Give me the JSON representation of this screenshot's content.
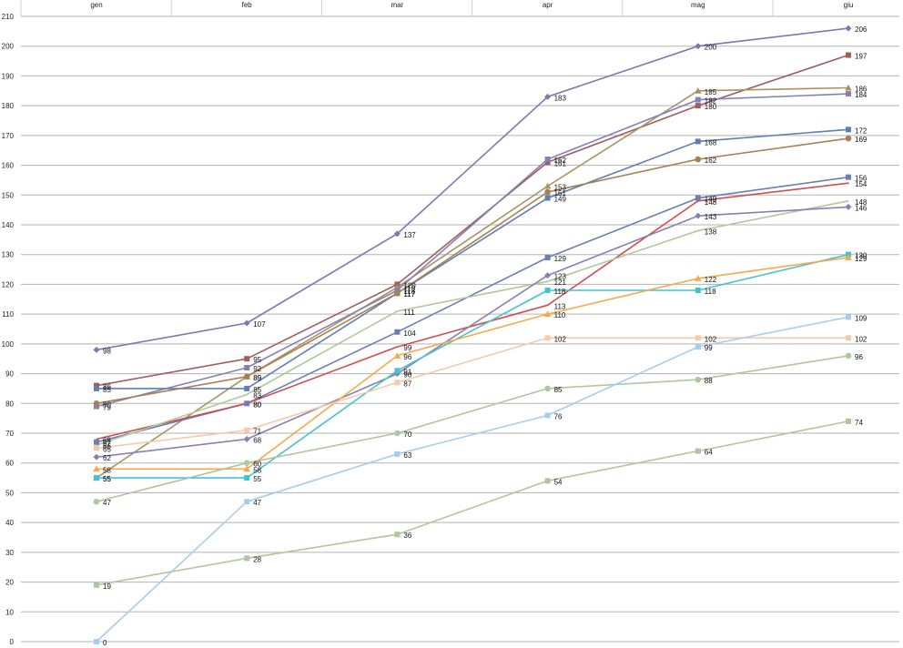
{
  "chart_data": {
    "type": "line",
    "categories": [
      "gen",
      "feb",
      "mar",
      "apr",
      "mag",
      "giu"
    ],
    "ylim": [
      0,
      210
    ],
    "ytick_step": 10,
    "grid": true,
    "legend": "none",
    "series": [
      {
        "color": "#7b78b4",
        "marker": "diamond",
        "values": [
          98,
          107,
          137,
          183,
          200,
          206
        ]
      },
      {
        "color": "#a35c5c",
        "marker": "square",
        "values": [
          86,
          95,
          120,
          161,
          180,
          197
        ]
      },
      {
        "color": "#a89363",
        "marker": "triangle",
        "values": [
          55,
          89,
          119,
          153,
          185,
          186
        ]
      },
      {
        "color": "#8481b8",
        "marker": "square",
        "values": [
          79,
          92,
          118,
          162,
          182,
          184
        ]
      },
      {
        "color": "#5f7eb5",
        "marker": "square",
        "values": [
          85,
          85,
          117,
          149,
          168,
          172
        ]
      },
      {
        "color": "#a88053",
        "marker": "circle",
        "values": [
          80,
          89,
          117,
          151,
          162,
          169
        ]
      },
      {
        "color": "#6a7fb8",
        "marker": "square",
        "values": [
          67,
          80,
          104,
          129,
          149,
          156
        ]
      },
      {
        "color": "#d24e4e",
        "marker": "none",
        "values": [
          68,
          80,
          99,
          113,
          148,
          154
        ]
      },
      {
        "color": "#aec99a",
        "marker": "none",
        "values": [
          66,
          83,
          111,
          121,
          138,
          148
        ]
      },
      {
        "color": "#8a7fb5",
        "marker": "diamond",
        "values": [
          62,
          68,
          90,
          123,
          143,
          146
        ]
      },
      {
        "color": "#44c3cf",
        "marker": "square",
        "values": [
          55,
          55,
          91,
          118,
          118,
          130
        ]
      },
      {
        "color": "#f7a84a",
        "marker": "triangle",
        "values": [
          58,
          58,
          96,
          110,
          122,
          129
        ]
      },
      {
        "color": "#f4cba8",
        "marker": "square",
        "values": [
          65,
          71,
          87,
          102,
          102,
          102
        ]
      },
      {
        "color": "#adc79e",
        "marker": "circle",
        "values": [
          47,
          60,
          70,
          85,
          88,
          96
        ]
      },
      {
        "color": "#a5cdf0",
        "marker": "square",
        "values": [
          0,
          47,
          63,
          76,
          99,
          109
        ]
      },
      {
        "color": "#aec89c",
        "marker": "square",
        "values": [
          19,
          28,
          36,
          54,
          64,
          74
        ]
      }
    ]
  }
}
